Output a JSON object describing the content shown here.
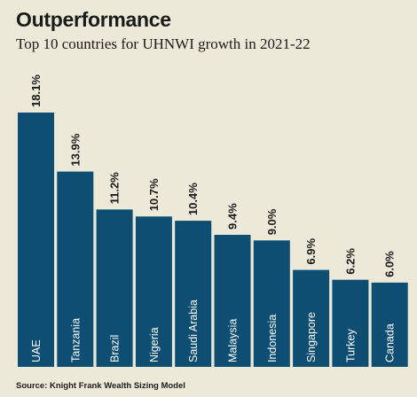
{
  "header": {
    "title": "Outperformance",
    "subtitle": "Top 10 countries for UHNWI growth in 2021-22"
  },
  "footer": {
    "source": "Source: Knight Frank Wealth Sizing Model"
  },
  "colors": {
    "bar": "#0d4e72",
    "background": "#ece9d8",
    "text": "#1b1b1b"
  },
  "chart_data": {
    "type": "bar",
    "categories": [
      "UAE",
      "Tanzania",
      "Brazil",
      "Nigeria",
      "Saudi Arabia",
      "Malaysia",
      "Indonesia",
      "Singapore",
      "Turkey",
      "Canada"
    ],
    "values": [
      18.1,
      13.9,
      11.2,
      10.7,
      10.4,
      9.4,
      9.0,
      6.9,
      6.2,
      6.0
    ],
    "value_labels": [
      "18.1%",
      "13.9%",
      "11.2%",
      "10.7%",
      "10.4%",
      "9.4%",
      "9.0%",
      "6.9%",
      "6.2%",
      "6.0%"
    ],
    "unit": "%",
    "title": "Outperformance",
    "subtitle": "Top 10 countries for UHNWI growth in 2021-22",
    "xlabel": "",
    "ylabel": "",
    "ylim": [
      0,
      18.1
    ],
    "grid": false,
    "legend": "none",
    "category_label_placement": "inside bar, rotated vertical",
    "value_label_placement": "above bar, rotated vertical"
  }
}
